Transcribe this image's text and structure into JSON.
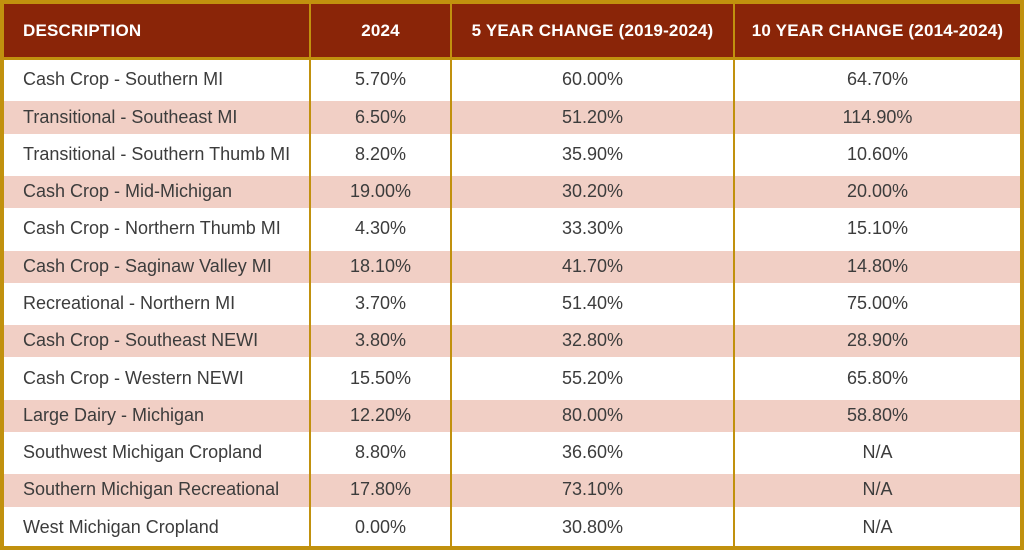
{
  "colors": {
    "header_bg": "#8A2508",
    "header_text": "#FFFFFF",
    "border_gold": "#C1910E",
    "row_bg": "#FFFFFF",
    "row_alt_bg": "#F1CFC5",
    "body_text": "#3C3C3C"
  },
  "table": {
    "columns": [
      {
        "label": "DESCRIPTION"
      },
      {
        "label": "2024"
      },
      {
        "label": "5 YEAR CHANGE (2019-2024)"
      },
      {
        "label": "10 YEAR CHANGE (2014-2024)"
      }
    ],
    "rows": [
      {
        "description": "Cash Crop - Southern MI",
        "y2024": "5.70%",
        "change_5yr": "60.00%",
        "change_10yr": "64.70%"
      },
      {
        "description": "Transitional - Southeast MI",
        "y2024": "6.50%",
        "change_5yr": "51.20%",
        "change_10yr": "114.90%"
      },
      {
        "description": "Transitional - Southern Thumb MI",
        "y2024": "8.20%",
        "change_5yr": "35.90%",
        "change_10yr": "10.60%"
      },
      {
        "description": "Cash Crop - Mid-Michigan",
        "y2024": "19.00%",
        "change_5yr": "30.20%",
        "change_10yr": "20.00%"
      },
      {
        "description": "Cash Crop - Northern Thumb MI",
        "y2024": "4.30%",
        "change_5yr": "33.30%",
        "change_10yr": "15.10%"
      },
      {
        "description": "Cash Crop - Saginaw Valley MI",
        "y2024": "18.10%",
        "change_5yr": "41.70%",
        "change_10yr": "14.80%"
      },
      {
        "description": "Recreational - Northern MI",
        "y2024": "3.70%",
        "change_5yr": "51.40%",
        "change_10yr": "75.00%"
      },
      {
        "description": "Cash Crop - Southeast NEWI",
        "y2024": "3.80%",
        "change_5yr": "32.80%",
        "change_10yr": "28.90%"
      },
      {
        "description": "Cash Crop - Western NEWI",
        "y2024": "15.50%",
        "change_5yr": "55.20%",
        "change_10yr": "65.80%"
      },
      {
        "description": "Large Dairy - Michigan",
        "y2024": "12.20%",
        "change_5yr": "80.00%",
        "change_10yr": "58.80%"
      },
      {
        "description": "Southwest Michigan Cropland",
        "y2024": "8.80%",
        "change_5yr": "36.60%",
        "change_10yr": "N/A"
      },
      {
        "description": "Southern Michigan Recreational",
        "y2024": "17.80%",
        "change_5yr": "73.10%",
        "change_10yr": "N/A"
      },
      {
        "description": "West Michigan Cropland",
        "y2024": "0.00%",
        "change_5yr": "30.80%",
        "change_10yr": "N/A"
      }
    ]
  }
}
